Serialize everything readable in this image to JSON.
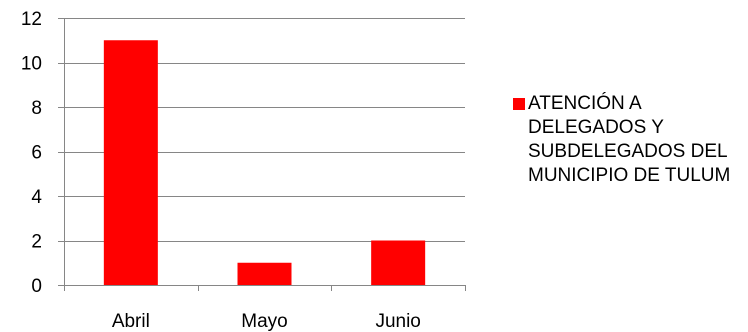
{
  "chart_data": {
    "type": "bar",
    "categories": [
      "Abril",
      "Mayo",
      "Junio"
    ],
    "series": [
      {
        "name": "ATENCIÓN A DELEGADOS Y SUBDELEGADOS DEL MUNICIPIO DE TULUM",
        "values": [
          11,
          1,
          2
        ],
        "color": "#ff0000"
      }
    ],
    "ylim": [
      0,
      12
    ],
    "yticks": [
      0,
      2,
      4,
      6,
      8,
      10,
      12
    ],
    "grid": true,
    "legend_position": "right",
    "title": "",
    "xlabel": "",
    "ylabel": ""
  }
}
